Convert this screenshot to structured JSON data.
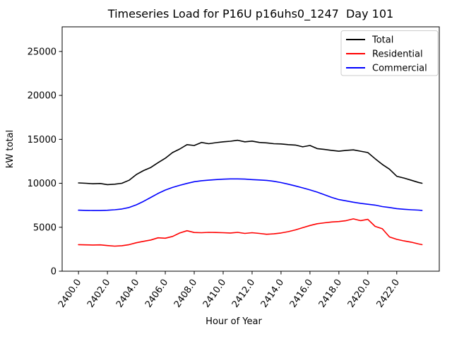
{
  "window": {
    "background": "#ffffff"
  },
  "chart_data": {
    "type": "line",
    "title": "Timeseries Load for P16U p16uhs0_1247  Day 101",
    "xlabel": "Hour of Year",
    "ylabel": "kW total",
    "grid": false,
    "xlim": [
      2398.87,
      2424.94
    ],
    "ylim": [
      0,
      27800
    ],
    "xticks": [
      2400,
      2402,
      2404,
      2406,
      2408,
      2410,
      2412,
      2414,
      2416,
      2418,
      2420,
      2422
    ],
    "xtick_labels": [
      "2400.0",
      "2402.0",
      "2404.0",
      "2406.0",
      "2408.0",
      "2410.0",
      "2412.0",
      "2414.0",
      "2416.0",
      "2418.0",
      "2420.0",
      "2422.0"
    ],
    "xtick_rotation_deg": -55,
    "yticks": [
      0,
      5000,
      10000,
      15000,
      20000,
      25000
    ],
    "ytick_labels": [
      "0",
      "5000",
      "10000",
      "15000",
      "20000",
      "25000"
    ],
    "legend": {
      "position": "upper right",
      "border_color": "#cccccc",
      "background": "#ffffff",
      "entries": [
        "Total",
        "Residential",
        "Commercial"
      ]
    },
    "x": [
      2400.0,
      2400.5,
      2401.0,
      2401.5,
      2402.0,
      2402.5,
      2403.0,
      2403.5,
      2404.0,
      2404.5,
      2405.0,
      2405.5,
      2406.0,
      2406.5,
      2407.0,
      2407.5,
      2408.0,
      2408.5,
      2409.0,
      2409.5,
      2410.0,
      2410.5,
      2411.0,
      2411.5,
      2412.0,
      2412.5,
      2413.0,
      2413.5,
      2414.0,
      2414.5,
      2415.0,
      2415.5,
      2416.0,
      2416.5,
      2417.0,
      2417.5,
      2418.0,
      2418.5,
      2419.0,
      2419.5,
      2420.0,
      2420.5,
      2421.0,
      2421.5,
      2422.0,
      2422.5,
      2423.0,
      2423.5,
      2423.75
    ],
    "series": [
      {
        "name": "Total",
        "color": "#000000",
        "values": [
          10040,
          10000,
          9950,
          9980,
          9850,
          9900,
          10000,
          10350,
          11000,
          11450,
          11800,
          12350,
          12850,
          13500,
          13900,
          14400,
          14300,
          14650,
          14500,
          14620,
          14720,
          14780,
          14900,
          14720,
          14800,
          14650,
          14600,
          14500,
          14480,
          14400,
          14350,
          14150,
          14300,
          13950,
          13850,
          13750,
          13650,
          13750,
          13800,
          13650,
          13500,
          12800,
          12150,
          11600,
          10800,
          10600,
          10350,
          10100,
          10000
        ]
      },
      {
        "name": "Residential",
        "color": "#ff0000",
        "values": [
          3020,
          3000,
          2980,
          3000,
          2920,
          2850,
          2900,
          3020,
          3240,
          3400,
          3550,
          3800,
          3750,
          3950,
          4350,
          4600,
          4400,
          4380,
          4420,
          4400,
          4380,
          4350,
          4420,
          4300,
          4380,
          4300,
          4200,
          4250,
          4350,
          4500,
          4700,
          4950,
          5200,
          5400,
          5500,
          5600,
          5650,
          5750,
          5950,
          5750,
          5900,
          5100,
          4830,
          3900,
          3620,
          3450,
          3300,
          3100,
          3020
        ]
      },
      {
        "name": "Commercial",
        "color": "#0000ff",
        "values": [
          6940,
          6920,
          6900,
          6900,
          6930,
          6990,
          7080,
          7250,
          7550,
          7950,
          8400,
          8850,
          9230,
          9530,
          9770,
          9990,
          10180,
          10290,
          10360,
          10420,
          10470,
          10500,
          10500,
          10480,
          10420,
          10380,
          10330,
          10230,
          10080,
          9900,
          9700,
          9480,
          9250,
          9000,
          8700,
          8400,
          8150,
          8000,
          7850,
          7720,
          7620,
          7520,
          7350,
          7250,
          7120,
          7050,
          6990,
          6950,
          6920
        ]
      }
    ]
  }
}
